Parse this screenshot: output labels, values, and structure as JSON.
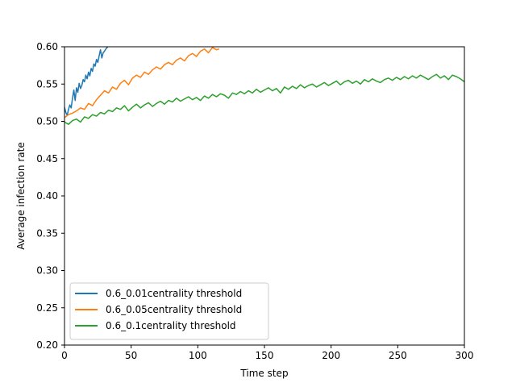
{
  "chart_data": {
    "type": "line",
    "title": "",
    "xlabel": "Time step",
    "ylabel": "Average infection rate",
    "xlim": [
      0,
      300
    ],
    "ylim": [
      0.2,
      0.6
    ],
    "xticks": [
      "0",
      "50",
      "100",
      "150",
      "200",
      "250",
      "300"
    ],
    "xtick_values": [
      0,
      50,
      100,
      150,
      200,
      250,
      300
    ],
    "yticks": [
      "0.20",
      "0.25",
      "0.30",
      "0.35",
      "0.40",
      "0.45",
      "0.50",
      "0.55",
      "0.60"
    ],
    "ytick_values": [
      0.2,
      0.25,
      0.3,
      0.35,
      0.4,
      0.45,
      0.5,
      0.55,
      0.6
    ],
    "grid": false,
    "legend_position": "lower-left",
    "series": [
      {
        "name": "0.6_0.01centrality threshold",
        "color": "#1f77b4",
        "x": [
          0,
          1,
          2,
          3,
          4,
          5,
          6,
          7,
          8,
          9,
          10,
          11,
          12,
          13,
          14,
          15,
          16,
          17,
          18,
          19,
          20,
          21,
          22,
          23,
          24,
          25,
          26,
          27,
          28,
          29,
          30,
          31,
          32,
          33,
          34
        ],
        "y": [
          0.519,
          0.512,
          0.508,
          0.516,
          0.522,
          0.518,
          0.531,
          0.542,
          0.528,
          0.545,
          0.539,
          0.551,
          0.544,
          0.548,
          0.556,
          0.553,
          0.562,
          0.557,
          0.566,
          0.561,
          0.571,
          0.567,
          0.577,
          0.574,
          0.583,
          0.579,
          0.588,
          0.596,
          0.585,
          0.592,
          0.594,
          0.597,
          0.599,
          0.601,
          0.604
        ]
      },
      {
        "name": "0.6_0.05centrality threshold",
        "color": "#ff7f0e",
        "x": [
          0,
          3,
          6,
          9,
          12,
          15,
          18,
          21,
          24,
          27,
          30,
          33,
          36,
          39,
          42,
          45,
          48,
          51,
          54,
          57,
          60,
          63,
          66,
          69,
          72,
          75,
          78,
          81,
          84,
          87,
          90,
          93,
          96,
          99,
          102,
          105,
          108,
          111,
          114,
          116
        ],
        "y": [
          0.505,
          0.509,
          0.511,
          0.514,
          0.518,
          0.516,
          0.524,
          0.521,
          0.529,
          0.535,
          0.541,
          0.538,
          0.546,
          0.543,
          0.551,
          0.555,
          0.549,
          0.558,
          0.562,
          0.559,
          0.566,
          0.563,
          0.569,
          0.573,
          0.57,
          0.576,
          0.579,
          0.576,
          0.582,
          0.585,
          0.581,
          0.588,
          0.591,
          0.587,
          0.594,
          0.597,
          0.592,
          0.599,
          0.596,
          0.597
        ]
      },
      {
        "name": "0.6_0.1centrality threshold",
        "color": "#2ca02c",
        "x": [
          0,
          3,
          6,
          9,
          12,
          15,
          18,
          21,
          24,
          27,
          30,
          33,
          36,
          39,
          42,
          45,
          48,
          51,
          54,
          57,
          60,
          63,
          66,
          69,
          72,
          75,
          78,
          81,
          84,
          87,
          90,
          93,
          96,
          99,
          102,
          105,
          108,
          111,
          114,
          117,
          120,
          123,
          126,
          129,
          132,
          135,
          138,
          141,
          144,
          147,
          150,
          153,
          156,
          159,
          162,
          165,
          168,
          171,
          174,
          177,
          180,
          183,
          186,
          189,
          192,
          195,
          198,
          201,
          204,
          207,
          210,
          213,
          216,
          219,
          222,
          225,
          228,
          231,
          234,
          237,
          240,
          243,
          246,
          249,
          252,
          255,
          258,
          261,
          264,
          267,
          270,
          273,
          276,
          279,
          282,
          285,
          288,
          291,
          294,
          297,
          300
        ],
        "y": [
          0.499,
          0.496,
          0.501,
          0.503,
          0.499,
          0.506,
          0.504,
          0.509,
          0.507,
          0.512,
          0.51,
          0.515,
          0.513,
          0.518,
          0.516,
          0.521,
          0.514,
          0.519,
          0.523,
          0.518,
          0.522,
          0.525,
          0.52,
          0.524,
          0.527,
          0.523,
          0.528,
          0.526,
          0.531,
          0.527,
          0.53,
          0.533,
          0.529,
          0.532,
          0.528,
          0.534,
          0.531,
          0.536,
          0.533,
          0.537,
          0.535,
          0.531,
          0.538,
          0.536,
          0.54,
          0.537,
          0.541,
          0.538,
          0.543,
          0.539,
          0.542,
          0.545,
          0.541,
          0.544,
          0.538,
          0.546,
          0.543,
          0.547,
          0.544,
          0.549,
          0.545,
          0.548,
          0.55,
          0.546,
          0.549,
          0.552,
          0.548,
          0.551,
          0.554,
          0.549,
          0.553,
          0.555,
          0.551,
          0.554,
          0.55,
          0.556,
          0.553,
          0.557,
          0.554,
          0.552,
          0.556,
          0.558,
          0.555,
          0.559,
          0.556,
          0.56,
          0.557,
          0.561,
          0.558,
          0.562,
          0.559,
          0.556,
          0.56,
          0.563,
          0.558,
          0.561,
          0.556,
          0.562,
          0.56,
          0.557,
          0.553
        ]
      }
    ]
  }
}
